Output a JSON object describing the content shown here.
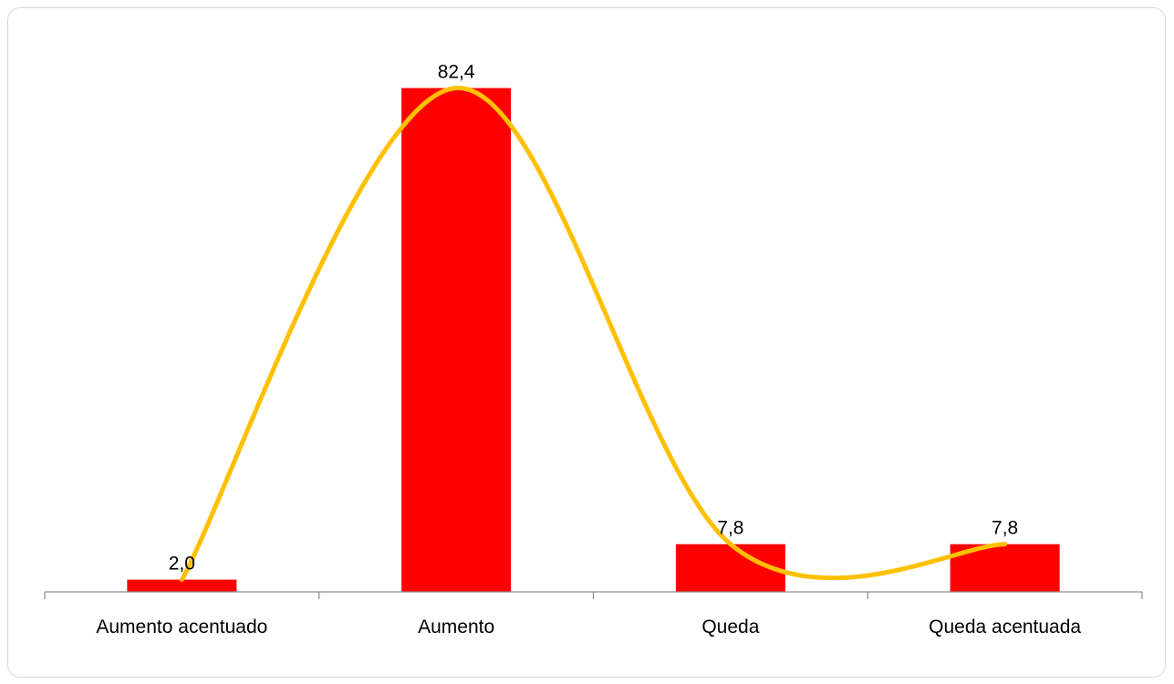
{
  "chart_data": {
    "type": "bar",
    "title": "",
    "xlabel": "",
    "ylabel": "",
    "categories": [
      "Aumento acentuado",
      "Aumento",
      "Queda",
      "Queda acentuada"
    ],
    "values": [
      2.0,
      82.4,
      7.8,
      7.8
    ],
    "data_labels": [
      "2,0",
      "82,4",
      "7,8",
      "7,8"
    ],
    "ylim": [
      0,
      88
    ],
    "grid": false,
    "legend": "none",
    "bar_color": "#FF0000",
    "trend_line_color": "#FFC000",
    "trend_line": "smoothed line through bar values"
  }
}
